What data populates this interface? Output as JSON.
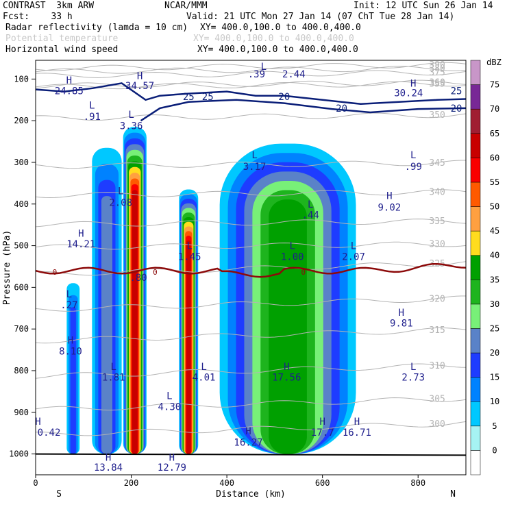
{
  "header": {
    "model": "CONTRAST  3km ARW",
    "org": "NCAR/MMM",
    "init": "Init: 12 UTC Sun 26 Jan 14",
    "fcst": "Fcst:    33 h",
    "valid": "Valid: 21 UTC Mon 27 Jan 14 (07 ChT Tue 28 Jan 14)",
    "fields": [
      {
        "name": "Radar reflectivity (lamda = 10 cm)",
        "xy": "XY= 400.0,100.0 to 400.0,400.0",
        "dim": false
      },
      {
        "name": "Potential temperature",
        "xy": "XY= 400.0,100.0 to 400.0,400.0",
        "dim": true
      },
      {
        "name": "Horizontal wind speed",
        "xy": "XY= 400.0,100.0 to 400.0,400.0",
        "dim": false
      }
    ]
  },
  "chart_data": {
    "type": "heatmap",
    "xlabel": "Distance (km)",
    "ylabel": "Pressure (hPa)",
    "xlim": [
      0,
      900
    ],
    "ylim": [
      1050,
      55
    ],
    "xticks": [
      0,
      200,
      400,
      600,
      800
    ],
    "yticks": [
      100,
      200,
      300,
      400,
      500,
      600,
      700,
      800,
      900,
      1000
    ],
    "x_end_labels": {
      "left": "S",
      "right": "N"
    },
    "colorbar": {
      "unit": "dBZ",
      "levels": [
        0,
        5,
        10,
        15,
        20,
        25,
        30,
        35,
        40,
        45,
        50,
        55,
        60,
        65,
        70,
        75
      ],
      "colors": [
        "#ffffff",
        "#a6f3f3",
        "#00c8ff",
        "#0082ff",
        "#1e3cff",
        "#5a82c8",
        "#78f078",
        "#1eb41e",
        "#00a000",
        "#ffdc1e",
        "#ffa040",
        "#ff5a00",
        "#fa0000",
        "#c80000",
        "#a01e32",
        "#782896",
        "#c896c8"
      ]
    },
    "cells": [
      {
        "x0": 65,
        "x1": 92,
        "p_top": 590,
        "p_bot": 1000,
        "peak_dbz": 15
      },
      {
        "x0": 118,
        "x1": 180,
        "p_top": 265,
        "p_bot": 1000,
        "peak_dbz": 20
      },
      {
        "x0": 183,
        "x1": 232,
        "p_top": 215,
        "p_bot": 1000,
        "peak_dbz": 60
      },
      {
        "x0": 300,
        "x1": 340,
        "p_top": 365,
        "p_bot": 1000,
        "peak_dbz": 60
      },
      {
        "x0": 385,
        "x1": 670,
        "p_top": 255,
        "p_bot": 1000,
        "peak_dbz": 35
      }
    ],
    "freezing_level_label": "0",
    "wind_speed_contours": [
      20,
      25
    ],
    "theta_contours": [
      300,
      305,
      310,
      315,
      320,
      325,
      330,
      335,
      340,
      345,
      350,
      355,
      360,
      375,
      380,
      390
    ],
    "annotations": [
      {
        "text": "H",
        "x": 70,
        "p": 103
      },
      {
        "text": "24.85",
        "x": 70,
        "p": 128
      },
      {
        "text": "H",
        "x": 218,
        "p": 92
      },
      {
        "text": "34.57",
        "x": 218,
        "p": 116
      },
      {
        "text": "L",
        "x": 477,
        "p": 70
      },
      {
        "text": ".39",
        "x": 462,
        "p": 88
      },
      {
        "text": "2.44",
        "x": 540,
        "p": 88
      },
      {
        "text": "H",
        "x": 790,
        "p": 110
      },
      {
        "text": "30.24",
        "x": 780,
        "p": 133
      },
      {
        "text": "L",
        "x": 118,
        "p": 163
      },
      {
        "text": ".91",
        "x": 118,
        "p": 190
      },
      {
        "text": "L",
        "x": 200,
        "p": 185
      },
      {
        "text": "3.36",
        "x": 200,
        "p": 212
      },
      {
        "text": "L",
        "x": 458,
        "p": 282
      },
      {
        "text": "3.17",
        "x": 458,
        "p": 310
      },
      {
        "text": "L",
        "x": 790,
        "p": 282
      },
      {
        "text": ".99",
        "x": 790,
        "p": 310
      },
      {
        "text": "L",
        "x": 178,
        "p": 368
      },
      {
        "text": "2.08",
        "x": 178,
        "p": 396
      },
      {
        "text": "L",
        "x": 575,
        "p": 400
      },
      {
        "text": ".44",
        "x": 575,
        "p": 426
      },
      {
        "text": "H",
        "x": 740,
        "p": 380
      },
      {
        "text": "9.02",
        "x": 740,
        "p": 408
      },
      {
        "text": "H",
        "x": 95,
        "p": 470
      },
      {
        "text": "14.21",
        "x": 95,
        "p": 496
      },
      {
        "text": "L",
        "x": 322,
        "p": 500
      },
      {
        "text": "1.45",
        "x": 322,
        "p": 526
      },
      {
        "text": "L",
        "x": 537,
        "p": 500
      },
      {
        "text": "1.00",
        "x": 537,
        "p": 526
      },
      {
        "text": "L",
        "x": 665,
        "p": 500
      },
      {
        "text": "2.07",
        "x": 665,
        "p": 526
      },
      {
        "text": ".80",
        "x": 215,
        "p": 576
      },
      {
        "text": "L",
        "x": 70,
        "p": 616
      },
      {
        "text": ".27",
        "x": 70,
        "p": 642
      },
      {
        "text": "H",
        "x": 765,
        "p": 660
      },
      {
        "text": "9.81",
        "x": 765,
        "p": 686
      },
      {
        "text": "H",
        "x": 73,
        "p": 727
      },
      {
        "text": "8.10",
        "x": 73,
        "p": 753
      },
      {
        "text": "L",
        "x": 163,
        "p": 790
      },
      {
        "text": "1.81",
        "x": 163,
        "p": 816
      },
      {
        "text": "L",
        "x": 352,
        "p": 790
      },
      {
        "text": "4.01",
        "x": 352,
        "p": 816
      },
      {
        "text": "H",
        "x": 525,
        "p": 790
      },
      {
        "text": "17.56",
        "x": 525,
        "p": 816
      },
      {
        "text": "L",
        "x": 790,
        "p": 790
      },
      {
        "text": "2.73",
        "x": 790,
        "p": 816
      },
      {
        "text": "L",
        "x": 280,
        "p": 860
      },
      {
        "text": "4.30",
        "x": 280,
        "p": 886
      },
      {
        "text": "H",
        "x": 5,
        "p": 922
      },
      {
        "text": "0.42",
        "x": 28,
        "p": 948
      },
      {
        "text": "H",
        "x": 445,
        "p": 945
      },
      {
        "text": "16.27",
        "x": 445,
        "p": 972
      },
      {
        "text": "H",
        "x": 600,
        "p": 922
      },
      {
        "text": "17.7",
        "x": 600,
        "p": 948
      },
      {
        "text": "H",
        "x": 672,
        "p": 922
      },
      {
        "text": "16.71",
        "x": 672,
        "p": 948
      },
      {
        "text": "H",
        "x": 152,
        "p": 1008
      },
      {
        "text": "13.84",
        "x": 152,
        "p": 1032
      },
      {
        "text": "H",
        "x": 285,
        "p": 1008
      },
      {
        "text": "12.79",
        "x": 285,
        "p": 1032
      }
    ]
  }
}
